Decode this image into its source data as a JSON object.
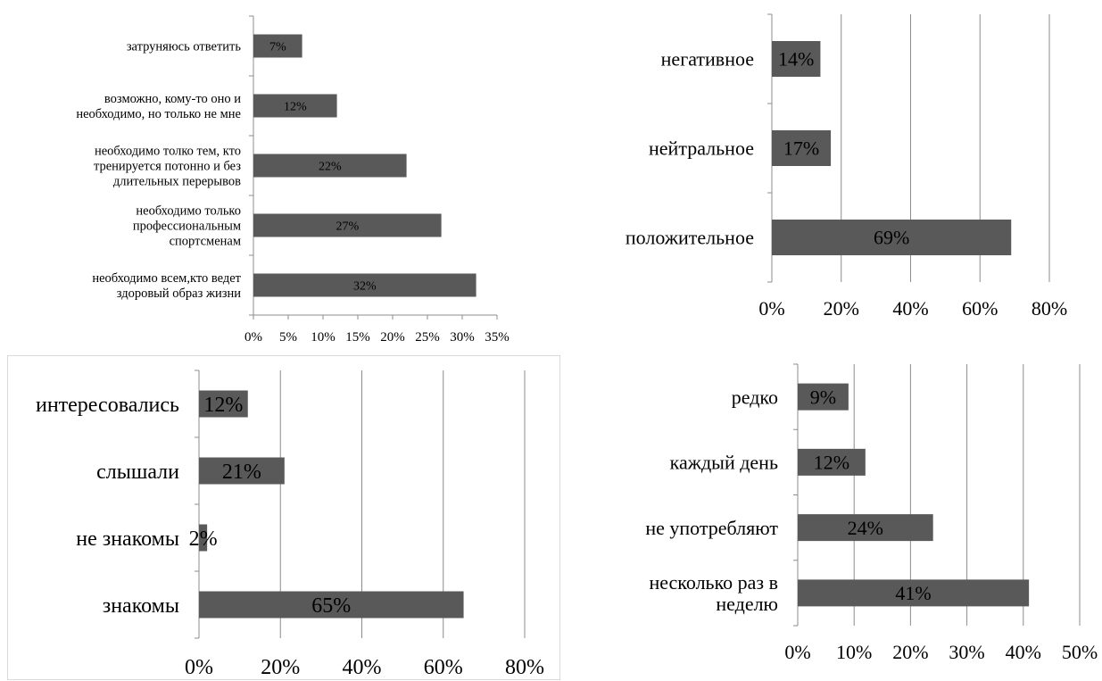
{
  "chart_data": [
    {
      "type": "bar",
      "orientation": "horizontal",
      "categories": [
        "затруняюсь ответить",
        "возможно, кому-то оно и необходимо, но только не мне",
        "необходимо толко тем, кто тренируется потонно и без длительных перерывов",
        "необходимо только профессиональным спортсменам",
        "необходимо всем,кто ведет здоровый образ жизни"
      ],
      "category_lines": [
        [
          "затруняюсь ответить"
        ],
        [
          "возможно, кому-то оно и",
          "необходимо, но только не мне"
        ],
        [
          "необходимо толко тем, кто",
          "тренируется потонно и без",
          "длительных перерывов"
        ],
        [
          "необходимо только",
          "профессиональным",
          "спортсменам"
        ],
        [
          "необходимо всем,кто ведет",
          "здоровый образ жизни"
        ]
      ],
      "values": [
        7,
        12,
        22,
        27,
        32
      ],
      "data_labels": [
        "7%",
        "12%",
        "22%",
        "27%",
        "32%"
      ],
      "xlim": [
        0,
        35
      ],
      "ticks": [
        0,
        5,
        10,
        15,
        20,
        25,
        30,
        35
      ],
      "tick_labels": [
        "0%",
        "5%",
        "10%",
        "15%",
        "20%",
        "25%",
        "30%",
        "35%"
      ],
      "grid": false,
      "legend": "none"
    },
    {
      "type": "bar",
      "orientation": "horizontal",
      "categories": [
        "негативное",
        "нейтральное",
        "положительное"
      ],
      "category_lines": [
        [
          "негативное"
        ],
        [
          "нейтральное"
        ],
        [
          "положительное"
        ]
      ],
      "values": [
        14,
        17,
        69
      ],
      "data_labels": [
        "14%",
        "17%",
        "69%"
      ],
      "xlim": [
        0,
        80
      ],
      "ticks": [
        0,
        20,
        40,
        60,
        80
      ],
      "tick_labels": [
        "0%",
        "20%",
        "40%",
        "60%",
        "80%"
      ],
      "grid": true,
      "legend": "none"
    },
    {
      "type": "bar",
      "orientation": "horizontal",
      "categories": [
        "интересовались",
        "слышали",
        "не знакомы",
        "знакомы"
      ],
      "category_lines": [
        [
          "интересовались"
        ],
        [
          "слышали"
        ],
        [
          "не знакомы"
        ],
        [
          "знакомы"
        ]
      ],
      "values": [
        12,
        21,
        2,
        65
      ],
      "data_labels": [
        "12%",
        "21%",
        "2%",
        "65%"
      ],
      "xlim": [
        0,
        80
      ],
      "ticks": [
        0,
        20,
        40,
        60,
        80
      ],
      "tick_labels": [
        "0%",
        "20%",
        "40%",
        "60%",
        "80%"
      ],
      "grid": true,
      "legend": "none"
    },
    {
      "type": "bar",
      "orientation": "horizontal",
      "categories": [
        "редко",
        "каждый день",
        "не употребляют",
        "несколько раз в неделю"
      ],
      "category_lines": [
        [
          "редко"
        ],
        [
          "каждый день"
        ],
        [
          "не употребляют"
        ],
        [
          "несколько раз в",
          "неделю"
        ]
      ],
      "values": [
        9,
        12,
        24,
        41
      ],
      "data_labels": [
        "9%",
        "12%",
        "24%",
        "41%"
      ],
      "xlim": [
        0,
        50
      ],
      "ticks": [
        0,
        10,
        20,
        30,
        40,
        50
      ],
      "tick_labels": [
        "0%",
        "10%",
        "20%",
        "30%",
        "40%",
        "50%"
      ],
      "grid": true,
      "legend": "none"
    }
  ],
  "colors": {
    "bar": "#595959",
    "grid": "#8c8c8c",
    "text": "#000000"
  }
}
